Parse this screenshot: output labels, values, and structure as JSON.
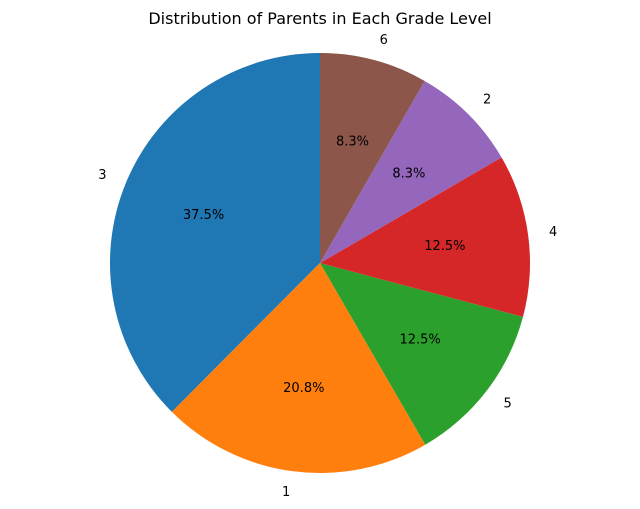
{
  "chart_data": {
    "type": "pie",
    "title": "Distribution of Parents in Each Grade Level",
    "slices": [
      {
        "label": "3",
        "percent": 37.5,
        "pct_text": "37.5%",
        "color": "#1f77b4"
      },
      {
        "label": "1",
        "percent": 20.8,
        "pct_text": "20.8%",
        "color": "#ff7f0e"
      },
      {
        "label": "5",
        "percent": 12.5,
        "pct_text": "12.5%",
        "color": "#2ca02c"
      },
      {
        "label": "4",
        "percent": 12.5,
        "pct_text": "12.5%",
        "color": "#d62728"
      },
      {
        "label": "2",
        "percent": 8.3,
        "pct_text": "8.3%",
        "color": "#9467bd"
      },
      {
        "label": "6",
        "percent": 8.3,
        "pct_text": "8.3%",
        "color": "#8c564b"
      }
    ],
    "start_angle_deg": 90,
    "direction": "counterclockwise"
  }
}
